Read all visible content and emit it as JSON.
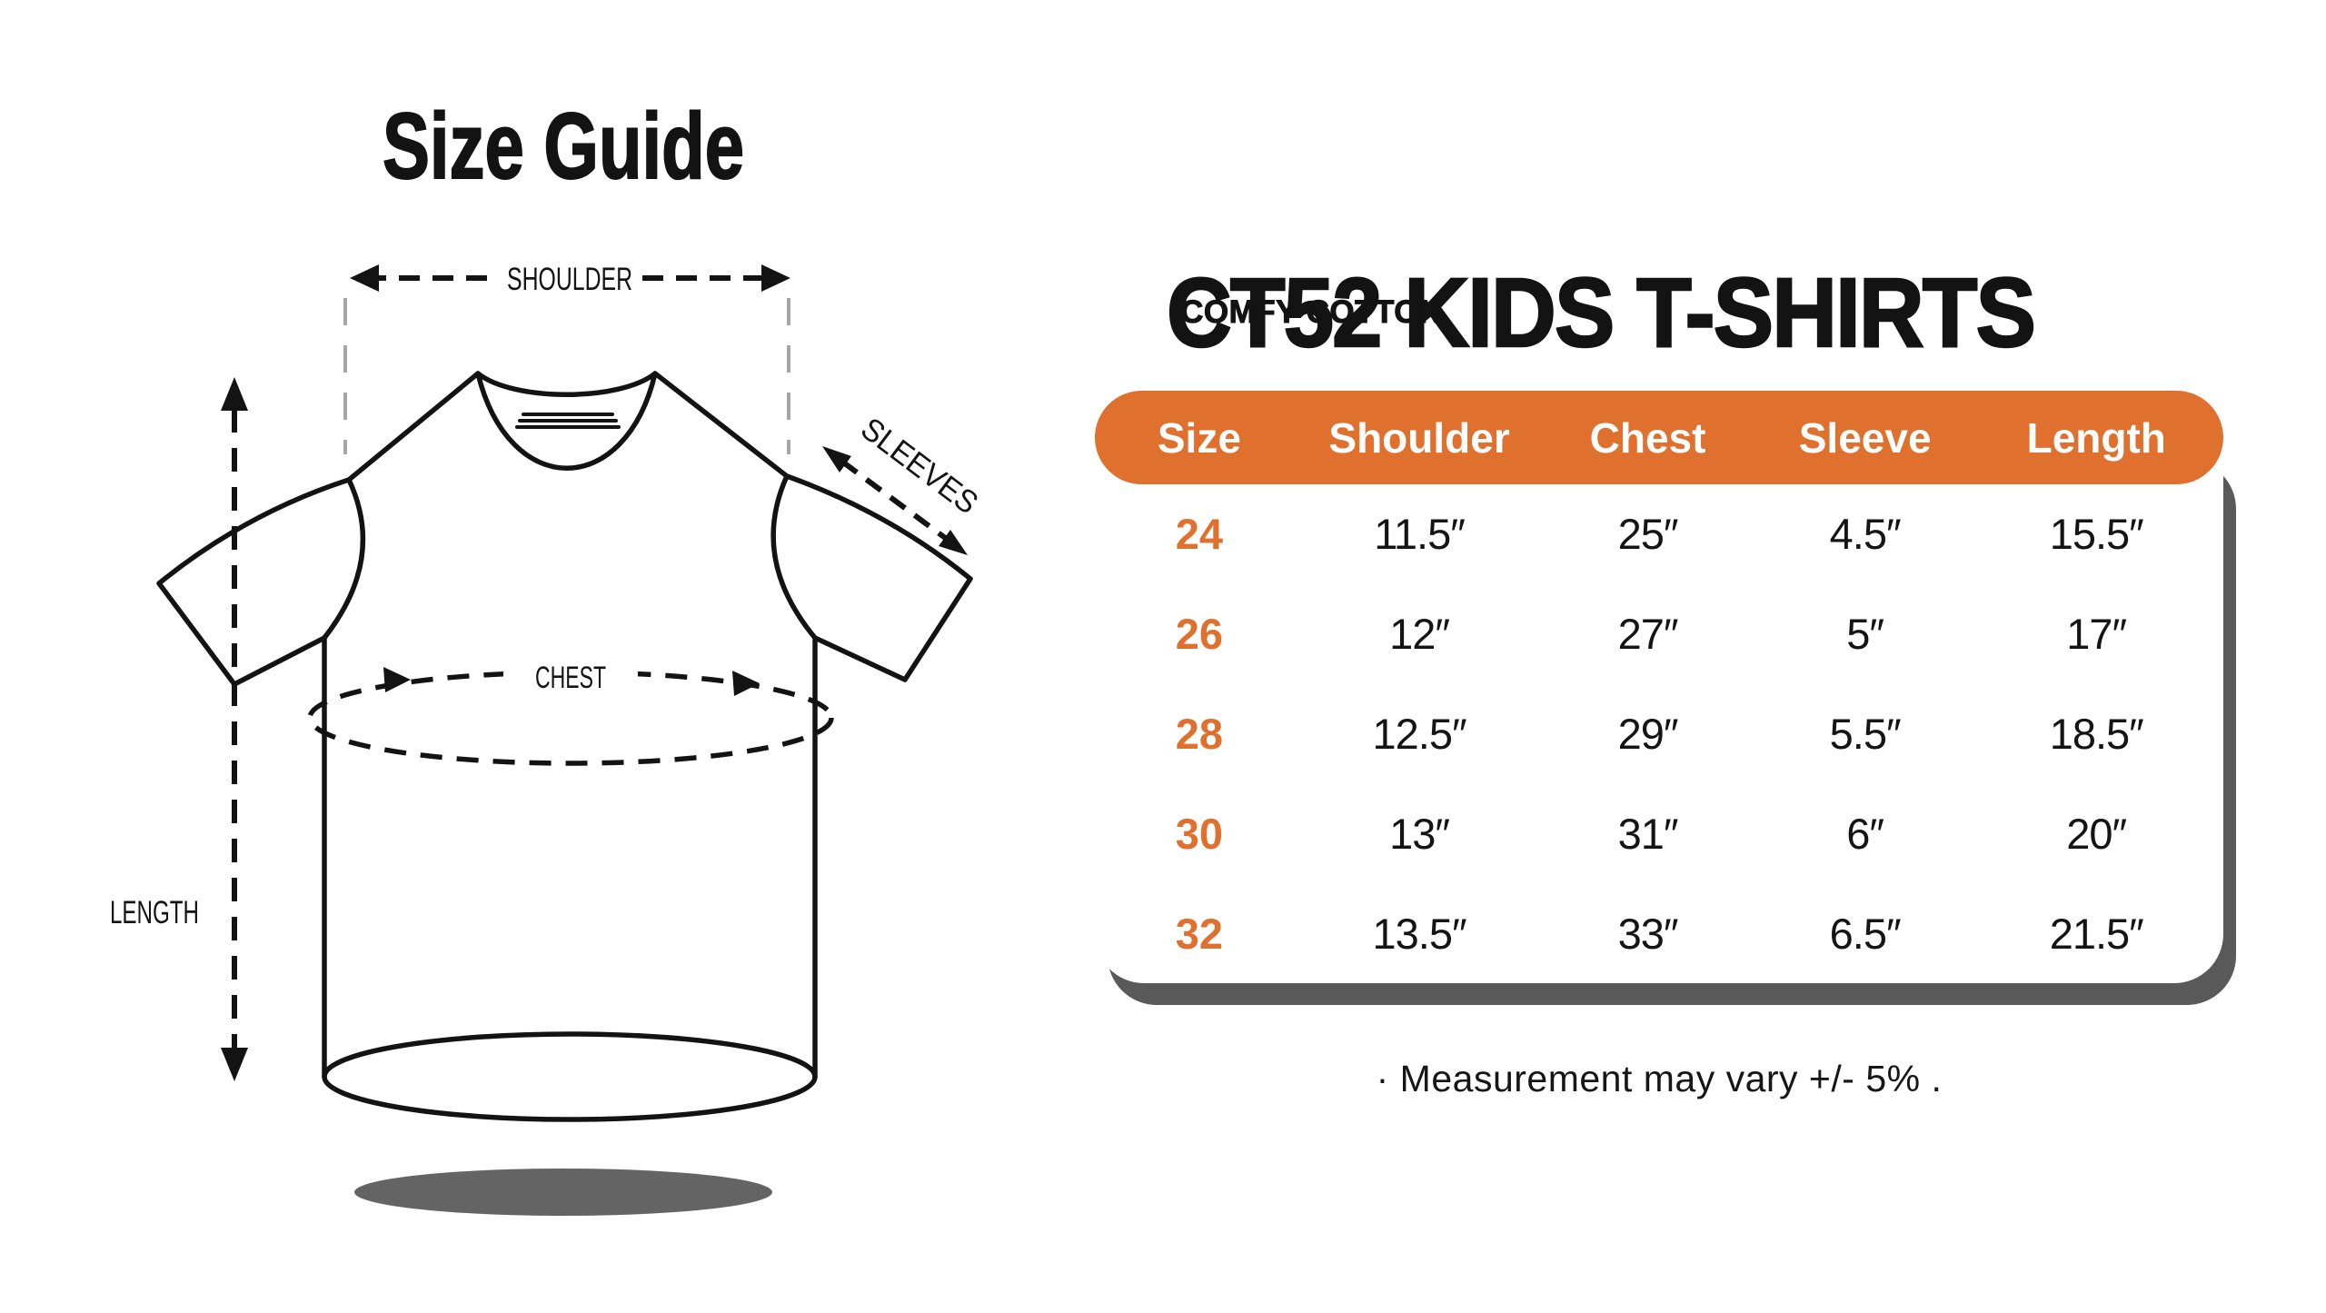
{
  "size_guide": {
    "title": "Size Guide",
    "labels": {
      "shoulder": "SHOULDER",
      "sleeves": "SLEEVES",
      "chest": "CHEST",
      "length": "LENGTH"
    }
  },
  "product": {
    "title": "CT52 KIDS T-SHIRTS",
    "subtitle": "-COMFY COTTON"
  },
  "size_table": {
    "columns": [
      "Size",
      "Shoulder",
      "Chest",
      "Sleeve",
      "Length"
    ],
    "rows": [
      [
        "24",
        "11.5″",
        "25″",
        "4.5″",
        "15.5″"
      ],
      [
        "26",
        "12″",
        "27″",
        "5″",
        "17″"
      ],
      [
        "28",
        "12.5″",
        "29″",
        "5.5″",
        "18.5″"
      ],
      [
        "30",
        "13″",
        "31″",
        "6″",
        "20″"
      ],
      [
        "32",
        "13.5″",
        "33″",
        "6.5″",
        "21.5″"
      ]
    ],
    "accent_color": "#e0702d",
    "shadow_color": "#595959",
    "header_text_color": "#ffffff"
  },
  "note": "· Measurement may vary +/- 5% ."
}
